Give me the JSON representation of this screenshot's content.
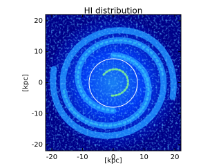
{
  "chart_data": {
    "type": "image",
    "title": "HI distribution",
    "xlabel": "[kpc]",
    "ylabel": "[kpc]",
    "xlim": [
      -22,
      22
    ],
    "ylim": [
      -22,
      22
    ],
    "xticks": [
      -20,
      -10,
      0,
      10,
      20
    ],
    "yticks": [
      -20,
      -10,
      0,
      10,
      20
    ]
  }
}
